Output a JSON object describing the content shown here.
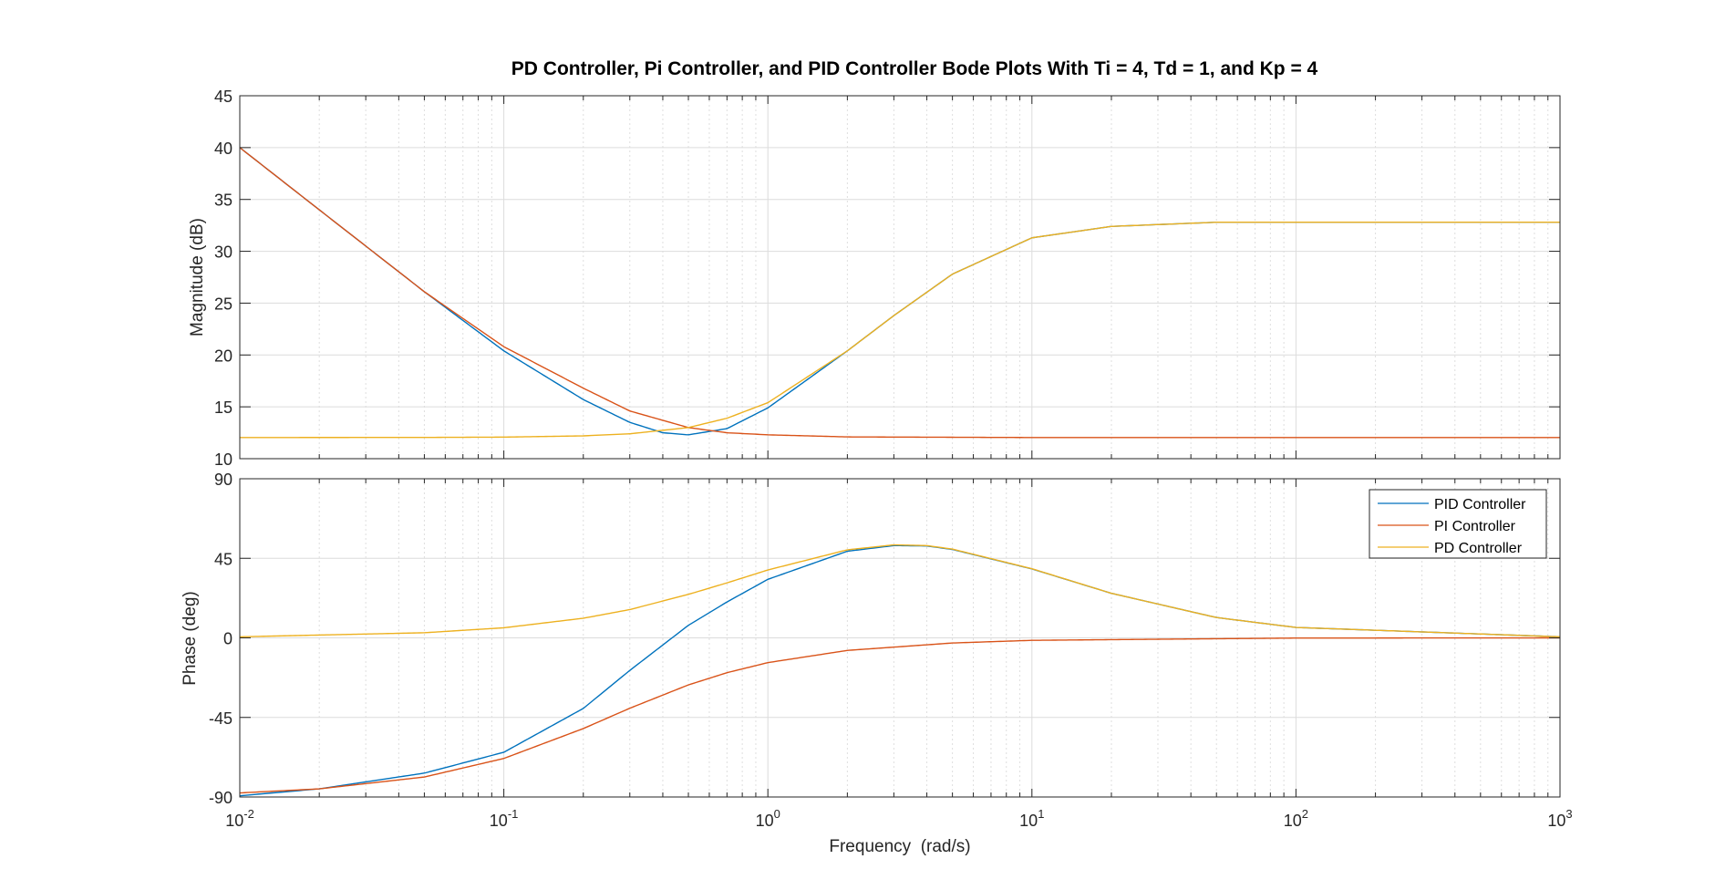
{
  "chart_data": {
    "type": "line",
    "title": "PD Controller, Pi Controller, and PID Controller Bode Plots With Ti = 4, Td = 1, and Kp = 4",
    "xlabel": "Frequency  (rad/s)",
    "xscale": "log",
    "xlim": [
      0.01,
      1000
    ],
    "x_tick_labels": [
      {
        "base": "10",
        "exp": "-2"
      },
      {
        "base": "10",
        "exp": "-1"
      },
      {
        "base": "10",
        "exp": "0"
      },
      {
        "base": "10",
        "exp": "1"
      },
      {
        "base": "10",
        "exp": "2"
      },
      {
        "base": "10",
        "exp": "3"
      }
    ],
    "grid": true,
    "subplots": [
      {
        "ylabel": "Magnitude (dB)",
        "ylim": [
          10,
          45
        ],
        "yticks": [
          "10",
          "15",
          "20",
          "25",
          "30",
          "35",
          "40",
          "45"
        ]
      },
      {
        "ylabel": "Phase (deg)",
        "ylim": [
          -90,
          90
        ],
        "yticks": [
          "-90",
          "-45",
          "0",
          "45",
          "90"
        ]
      }
    ],
    "legend": {
      "placement": "top-right",
      "subplot": "phase",
      "entries": [
        "PID Controller",
        "PI Controller",
        "PD Controller"
      ]
    },
    "series": [
      {
        "name": "PID Controller",
        "color": "#0072BD",
        "magnitude": [
          [
            0.01,
            40.0
          ],
          [
            0.02,
            34.0
          ],
          [
            0.05,
            26.1
          ],
          [
            0.1,
            20.4
          ],
          [
            0.2,
            15.7
          ],
          [
            0.3,
            13.5
          ],
          [
            0.4,
            12.5
          ],
          [
            0.5,
            12.3
          ],
          [
            0.7,
            12.9
          ],
          [
            1.0,
            14.9
          ],
          [
            2.0,
            20.4
          ],
          [
            3.0,
            23.8
          ],
          [
            5.0,
            27.8
          ],
          [
            10.0,
            31.3
          ],
          [
            20.0,
            32.4
          ],
          [
            50.0,
            32.8
          ],
          [
            100.0,
            32.8
          ],
          [
            1000.0,
            32.8
          ]
        ],
        "phase": [
          [
            0.01,
            -89.3
          ],
          [
            0.02,
            -85.4
          ],
          [
            0.05,
            -76.5
          ],
          [
            0.1,
            -64.7
          ],
          [
            0.2,
            -39.9
          ],
          [
            0.3,
            -18.4
          ],
          [
            0.5,
            7.1
          ],
          [
            0.7,
            20.3
          ],
          [
            1.0,
            33.1
          ],
          [
            2.0,
            49.0
          ],
          [
            3.0,
            52.2
          ],
          [
            4.0,
            52.0
          ],
          [
            5.0,
            50.0
          ],
          [
            10.0,
            39.0
          ],
          [
            20.0,
            25.2
          ],
          [
            50.0,
            11.5
          ],
          [
            100.0,
            5.9
          ],
          [
            1000.0,
            0.6
          ]
        ]
      },
      {
        "name": "PI Controller",
        "color": "#D95319",
        "magnitude": [
          [
            0.01,
            40.0
          ],
          [
            0.02,
            34.0
          ],
          [
            0.05,
            26.1
          ],
          [
            0.1,
            20.8
          ],
          [
            0.2,
            16.8
          ],
          [
            0.3,
            14.6
          ],
          [
            0.5,
            13.0
          ],
          [
            0.7,
            12.5
          ],
          [
            1.0,
            12.3
          ],
          [
            2.0,
            12.1
          ],
          [
            10.0,
            12.04
          ],
          [
            1000.0,
            12.04
          ]
        ],
        "phase": [
          [
            0.01,
            -87.7
          ],
          [
            0.02,
            -85.4
          ],
          [
            0.05,
            -78.7
          ],
          [
            0.1,
            -68.2
          ],
          [
            0.2,
            -51.3
          ],
          [
            0.3,
            -39.8
          ],
          [
            0.5,
            -26.6
          ],
          [
            0.7,
            -19.7
          ],
          [
            1.0,
            -14.0
          ],
          [
            2.0,
            -7.1
          ],
          [
            5.0,
            -2.9
          ],
          [
            10.0,
            -1.4
          ],
          [
            100.0,
            -0.1
          ],
          [
            1000.0,
            0.0
          ]
        ]
      },
      {
        "name": "PD Controller",
        "color": "#EDB120",
        "magnitude": [
          [
            0.01,
            12.04
          ],
          [
            0.05,
            12.05
          ],
          [
            0.1,
            12.08
          ],
          [
            0.2,
            12.2
          ],
          [
            0.3,
            12.4
          ],
          [
            0.5,
            13.0
          ],
          [
            0.7,
            13.9
          ],
          [
            1.0,
            15.4
          ],
          [
            2.0,
            20.4
          ],
          [
            3.0,
            23.8
          ],
          [
            5.0,
            27.8
          ],
          [
            10.0,
            31.3
          ],
          [
            20.0,
            32.4
          ],
          [
            50.0,
            32.8
          ],
          [
            100.0,
            32.8
          ],
          [
            1000.0,
            32.8
          ]
        ],
        "phase": [
          [
            0.01,
            0.6
          ],
          [
            0.05,
            2.9
          ],
          [
            0.1,
            5.7
          ],
          [
            0.2,
            11.1
          ],
          [
            0.3,
            16.0
          ],
          [
            0.5,
            24.6
          ],
          [
            0.7,
            31.1
          ],
          [
            1.0,
            38.4
          ],
          [
            2.0,
            49.8
          ],
          [
            3.0,
            52.6
          ],
          [
            4.0,
            52.2
          ],
          [
            5.0,
            50.2
          ],
          [
            10.0,
            39.1
          ],
          [
            20.0,
            25.2
          ],
          [
            50.0,
            11.5
          ],
          [
            100.0,
            5.9
          ],
          [
            1000.0,
            0.6
          ]
        ]
      }
    ]
  }
}
